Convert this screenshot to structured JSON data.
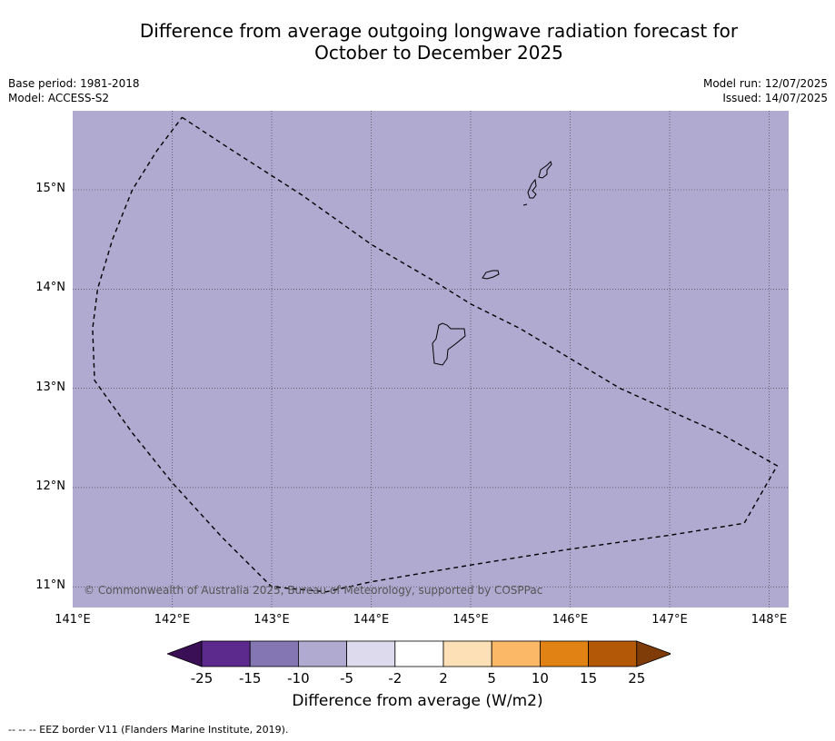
{
  "title": {
    "line1": "Difference from average outgoing longwave radiation forecast for",
    "line2": "October to December 2025"
  },
  "meta_left": {
    "base_period": "Base period: 1981-2018",
    "model": "Model: ACCESS-S2"
  },
  "meta_right": {
    "model_run": "Model run: 12/07/2025",
    "issued": "Issued: 14/07/2025"
  },
  "map": {
    "fill_color": "#b0a9d0",
    "copyright": "© Commonwealth of Australia 2025, Bureau of Meteorology, supported by COSPPac",
    "lat_ticks": [
      "15°N",
      "14°N",
      "13°N",
      "12°N",
      "11°N"
    ],
    "lon_ticks": [
      "141°E",
      "142°E",
      "143°E",
      "144°E",
      "145°E",
      "146°E",
      "147°E",
      "148°E"
    ],
    "eez_border": [
      [
        142.1,
        15.73
      ],
      [
        142.6,
        15.4
      ],
      [
        143.3,
        14.95
      ],
      [
        144.0,
        14.45
      ],
      [
        144.6,
        14.1
      ],
      [
        145.0,
        13.85
      ],
      [
        145.5,
        13.6
      ],
      [
        146.5,
        13.0
      ],
      [
        147.5,
        12.55
      ],
      [
        148.08,
        12.22
      ],
      [
        147.75,
        11.64
      ],
      [
        147.0,
        11.52
      ],
      [
        146.0,
        11.38
      ],
      [
        145.0,
        11.22
      ],
      [
        144.0,
        11.05
      ],
      [
        143.55,
        10.95
      ],
      [
        143.0,
        11.0
      ],
      [
        142.5,
        11.5
      ],
      [
        142.0,
        12.05
      ],
      [
        141.6,
        12.55
      ],
      [
        141.22,
        13.08
      ],
      [
        141.2,
        13.6
      ],
      [
        141.25,
        14.0
      ],
      [
        141.4,
        14.5
      ],
      [
        141.6,
        15.0
      ],
      [
        141.85,
        15.4
      ],
      [
        142.1,
        15.73
      ]
    ]
  },
  "colorbar": {
    "tick_labels": [
      "-25",
      "-15",
      "-10",
      "-5",
      "-2",
      "2",
      "5",
      "10",
      "15",
      "25"
    ],
    "colors": [
      "#3b0f55",
      "#5b2a8c",
      "#8476b2",
      "#b0a9d0",
      "#dcdaec",
      "#ffffff",
      "#fde0b6",
      "#fbb967",
      "#e08214",
      "#b35806",
      "#7f3b08"
    ],
    "label": "Difference from average (W/m2)"
  },
  "footnote": "--  --  -- EEZ border V11 (Flanders Marine Institute, 2019)."
}
